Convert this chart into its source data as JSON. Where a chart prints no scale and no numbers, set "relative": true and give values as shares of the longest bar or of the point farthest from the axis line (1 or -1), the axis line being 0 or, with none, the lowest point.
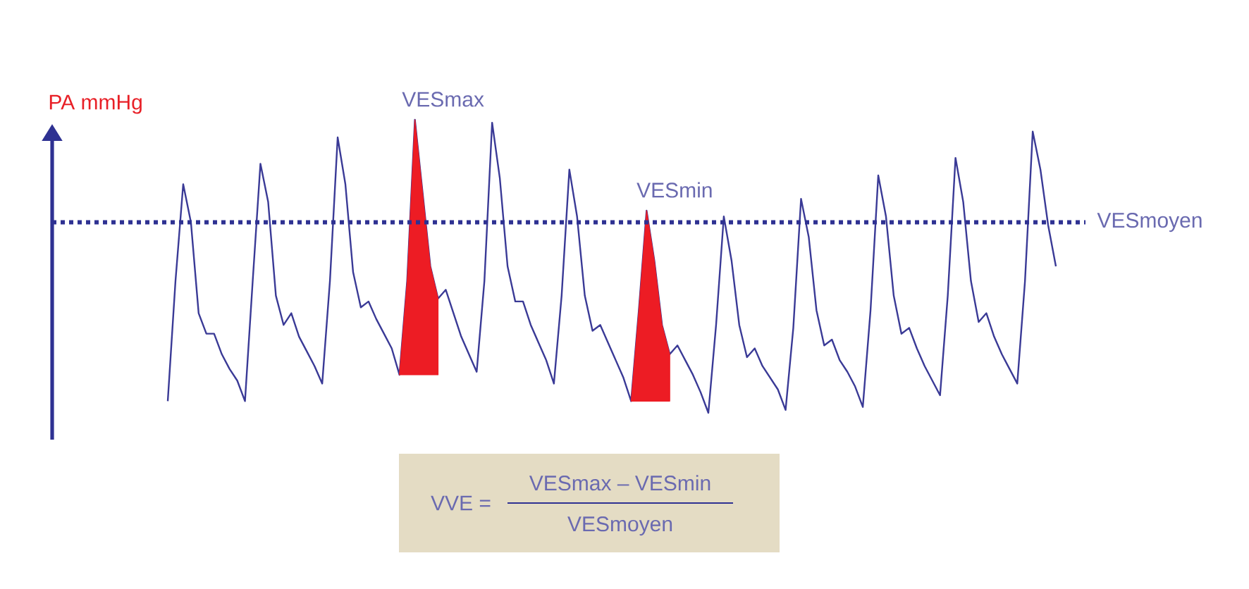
{
  "chart_data": {
    "type": "line",
    "relative": true,
    "ylabel": "PA mmHg",
    "marker": "none",
    "line_style": "solid",
    "categories": [
      null,
      null,
      null,
      null,
      null,
      null,
      null,
      null,
      null,
      null,
      null,
      null,
      null,
      null,
      null,
      null,
      null,
      null,
      null,
      null,
      null,
      null,
      null,
      null,
      null,
      null,
      null,
      null,
      null,
      null,
      null,
      null,
      null,
      null,
      null,
      null,
      null,
      null,
      null,
      null,
      null,
      null,
      null,
      null,
      null,
      null,
      null,
      null,
      null,
      null,
      null,
      null,
      null,
      null,
      null,
      null,
      null,
      null,
      null,
      null,
      null,
      null,
      null,
      null,
      null,
      null,
      null,
      null,
      null,
      null,
      null,
      null,
      null,
      null,
      null,
      null,
      null,
      null,
      null,
      null,
      null,
      null,
      null,
      null,
      null,
      null,
      null,
      null,
      null,
      null,
      null,
      null,
      null,
      null,
      null,
      null,
      null,
      null,
      null,
      null,
      null,
      null,
      null,
      null,
      null,
      null,
      null,
      null,
      null,
      null,
      null,
      null,
      null,
      null,
      null,
      null
    ],
    "series": [
      {
        "color": "#3a3a96",
        "values": [
          0.04,
          0.45,
          0.78,
          0.65,
          0.34,
          0.27,
          0.27,
          0.2,
          0.15,
          0.11,
          0.04,
          0.45,
          0.85,
          0.72,
          0.4,
          0.3,
          0.34,
          0.26,
          0.21,
          0.16,
          0.1,
          0.45,
          0.94,
          0.78,
          0.48,
          0.36,
          0.38,
          0.32,
          0.27,
          0.22,
          0.13,
          0.45,
          1.0,
          0.75,
          0.5,
          0.39,
          0.42,
          0.34,
          0.26,
          0.2,
          0.14,
          0.45,
          0.99,
          0.8,
          0.5,
          0.38,
          0.38,
          0.3,
          0.24,
          0.18,
          0.1,
          0.4,
          0.83,
          0.67,
          0.4,
          0.28,
          0.3,
          0.24,
          0.18,
          0.12,
          0.04,
          0.35,
          0.69,
          0.52,
          0.3,
          0.2,
          0.23,
          0.18,
          0.13,
          0.07,
          0.0,
          0.3,
          0.67,
          0.52,
          0.3,
          0.19,
          0.22,
          0.16,
          0.12,
          0.08,
          0.01,
          0.29,
          0.73,
          0.6,
          0.35,
          0.23,
          0.25,
          0.18,
          0.14,
          0.09,
          0.02,
          0.35,
          0.81,
          0.67,
          0.4,
          0.27,
          0.29,
          0.22,
          0.16,
          0.11,
          0.06,
          0.4,
          0.87,
          0.72,
          0.45,
          0.31,
          0.34,
          0.26,
          0.2,
          0.15,
          0.1,
          0.45,
          0.96,
          0.83,
          0.64,
          0.5
        ]
      },
      {
        "type": "area",
        "color": "#ed1c24",
        "values": [
          null,
          null,
          null,
          null,
          null,
          null,
          null,
          null,
          null,
          null,
          null,
          null,
          null,
          null,
          null,
          null,
          null,
          null,
          null,
          null,
          null,
          null,
          null,
          null,
          null,
          null,
          null,
          null,
          null,
          null,
          0.13,
          0.45,
          1.0,
          0.75,
          0.5,
          0.39,
          null,
          null,
          null,
          null,
          null,
          null,
          null,
          null,
          null,
          null,
          null,
          null,
          null,
          null,
          null,
          null,
          null,
          null,
          null,
          null,
          null,
          null,
          null,
          null,
          null,
          null,
          null,
          null,
          null,
          null,
          null,
          null,
          null,
          null,
          null,
          null,
          null,
          null,
          null,
          null,
          null,
          null,
          null,
          null,
          null,
          null,
          null,
          null,
          null,
          null,
          null,
          null,
          null,
          null,
          null,
          null,
          null,
          null,
          null,
          null,
          null,
          null,
          null,
          null,
          null,
          null,
          null,
          null,
          null,
          null,
          null,
          null,
          null,
          null,
          null,
          null,
          null,
          null,
          null,
          null
        ]
      },
      {
        "type": "area",
        "color": "#ed1c24",
        "values": [
          null,
          null,
          null,
          null,
          null,
          null,
          null,
          null,
          null,
          null,
          null,
          null,
          null,
          null,
          null,
          null,
          null,
          null,
          null,
          null,
          null,
          null,
          null,
          null,
          null,
          null,
          null,
          null,
          null,
          null,
          null,
          null,
          null,
          null,
          null,
          null,
          null,
          null,
          null,
          null,
          null,
          null,
          null,
          null,
          null,
          null,
          null,
          null,
          null,
          null,
          null,
          null,
          null,
          null,
          null,
          null,
          null,
          null,
          null,
          null,
          0.04,
          0.35,
          0.69,
          0.52,
          0.3,
          0.2,
          null,
          null,
          null,
          null,
          null,
          null,
          null,
          null,
          null,
          null,
          null,
          null,
          null,
          null,
          null,
          null,
          null,
          null,
          null,
          null,
          null,
          null,
          null,
          null,
          null,
          null,
          null,
          null,
          null,
          null,
          null,
          null,
          null,
          null,
          null,
          null,
          null,
          null,
          null,
          null,
          null,
          null,
          null,
          null,
          null,
          null,
          null,
          null,
          null,
          null
        ]
      }
    ],
    "ref_lines": [
      {
        "axis": "y",
        "value": 0.65,
        "label": "VESmoyen",
        "color": "#2e3192",
        "line_style": "dotted"
      }
    ],
    "annotations": [
      "VESmax",
      "VESmin",
      "VVE =",
      "VESmax – VESmin",
      "VESmoyen"
    ]
  }
}
